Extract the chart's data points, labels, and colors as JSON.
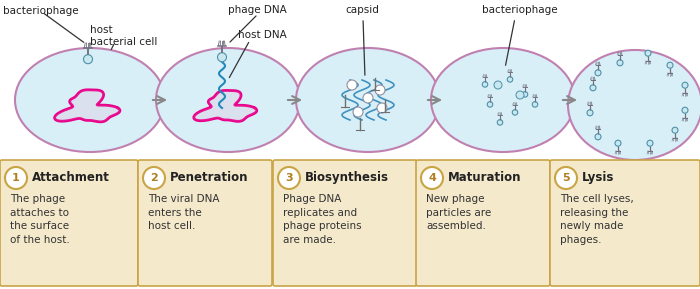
{
  "background_color": "#ffffff",
  "box_bg_color": "#f5e9cc",
  "box_border_color": "#c8a444",
  "cell_fill": "#d8eff8",
  "cell_border": "#c080b0",
  "arrow_color": "#888888",
  "steps": [
    {
      "number": "1",
      "title": "Attachment",
      "body": "The phage\nattaches to\nthe surface\nof the host."
    },
    {
      "number": "2",
      "title": "Penetration",
      "body": "The viral DNA\nenters the\nhost cell."
    },
    {
      "number": "3",
      "title": "Biosynthesis",
      "body": "Phage DNA\nreplicates and\nphage proteins\nare made."
    },
    {
      "number": "4",
      "title": "Maturation",
      "body": "New phage\nparticles are\nassembled."
    },
    {
      "number": "5",
      "title": "Lysis",
      "body": "The cell lyses,\nreleasing the\nnewly made\nphages."
    }
  ]
}
